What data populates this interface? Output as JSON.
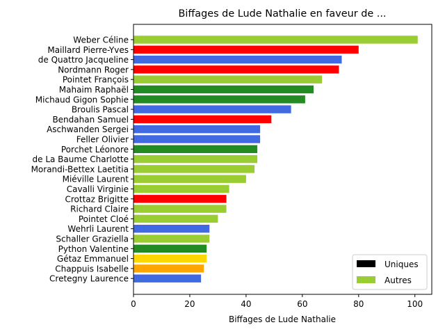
{
  "chart_data": {
    "type": "bar",
    "orientation": "horizontal",
    "title": "Biffages de Lude Nathalie en faveur de ...",
    "xlabel": "Biffages de Lude Nathalie",
    "ylabel": "",
    "xlim": [
      0,
      106
    ],
    "xticks": [
      0,
      20,
      40,
      60,
      80,
      100
    ],
    "grid": false,
    "legend_position": "lower-right",
    "categories": [
      "Weber Céline",
      "Maillard Pierre-Yves",
      "de Quattro Jacqueline",
      "Nordmann Roger",
      "Pointet François",
      "Mahaim Raphaël",
      "Michaud Gigon Sophie",
      "Broulis Pascal",
      "Bendahan Samuel",
      "Aschwanden Sergei",
      "Feller Olivier",
      "Porchet Léonore",
      "de La Baume Charlotte",
      "Morandi-Bettex Laetitia",
      "Miéville Laurent",
      "Cavalli Virginie",
      "Crottaz Brigitte",
      "Richard Claire",
      "Pointet Cloé",
      "Wehrli Laurent",
      "Schaller Graziella",
      "Python Valentine",
      "Gétaz Emmanuel",
      "Chappuis Isabelle",
      "Cretegny Laurence"
    ],
    "values": [
      101,
      80,
      74,
      73,
      67,
      64,
      61,
      56,
      49,
      45,
      45,
      44,
      44,
      43,
      40,
      34,
      33,
      33,
      30,
      27,
      27,
      26,
      26,
      25,
      24
    ],
    "colors": [
      "#9acd32",
      "#ff0000",
      "#4169e1",
      "#ff0000",
      "#9acd32",
      "#228b22",
      "#228b22",
      "#4169e1",
      "#ff0000",
      "#4169e1",
      "#4169e1",
      "#228b22",
      "#9acd32",
      "#9acd32",
      "#9acd32",
      "#9acd32",
      "#ff0000",
      "#9acd32",
      "#9acd32",
      "#4169e1",
      "#9acd32",
      "#228b22",
      "#ffd700",
      "#ffa500",
      "#4169e1"
    ],
    "legend": [
      {
        "label": "Uniques",
        "color": "#000000"
      },
      {
        "label": "Autres",
        "color": "#9acd32"
      }
    ]
  }
}
